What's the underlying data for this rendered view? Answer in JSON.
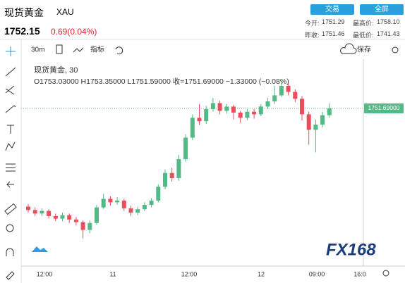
{
  "header": {
    "title": "现货黄金",
    "symbol": "XAU",
    "buttons": [
      "交易",
      "全屏"
    ],
    "price": "1752.15",
    "change": "0.69(0.04%)",
    "stats": [
      [
        "今开:",
        "1751.29"
      ],
      [
        "最高价:",
        "1758.10"
      ],
      [
        "昨收:",
        "1751.46"
      ],
      [
        "最低价:",
        "1741.43"
      ]
    ]
  },
  "toolbar": {
    "interval": "30m",
    "indicators": "指标",
    "save": "保存"
  },
  "legend": {
    "title": "现货黄金, 30",
    "ohlc": "O1753.03000  H1753.35000  L1751.59000  收=1751.69000  −1.33000 (−0.08%)"
  },
  "watermark": "FX168",
  "chart_data": {
    "type": "candlestick",
    "up_color": "#53b987",
    "down_color": "#eb4d5c",
    "ylim": [
      1733.4,
      1757.4
    ],
    "x_labels": [
      "12:00",
      "11",
      "12:00",
      "12",
      "09:00",
      "16:0"
    ],
    "last_price": {
      "value": 1751.69,
      "label": "1751.69000"
    },
    "open": [
      1740.3,
      1739.9,
      1739.5,
      1739.8,
      1739.2,
      1738.9,
      1739.3,
      1738.8,
      1738.5,
      1737.6,
      1738.4,
      1740.2,
      1741.2,
      1740.8,
      1741.0,
      1740.1,
      1739.6,
      1740.0,
      1740.5,
      1741.0,
      1742.6,
      1744.2,
      1743.6,
      1745.8,
      1748.3,
      1750.6,
      1750.2,
      1751.6,
      1752.3,
      1751.4,
      1751.9,
      1751.2,
      1750.6,
      1751.3,
      1751.0,
      1751.9,
      1752.5,
      1753.2,
      1754.3,
      1753.6,
      1752.8,
      1751.0,
      1749.2,
      1749.8,
      1750.9
    ],
    "high": [
      1740.6,
      1740.2,
      1740.1,
      1740.0,
      1739.5,
      1739.6,
      1739.5,
      1739.1,
      1738.7,
      1738.7,
      1740.5,
      1741.8,
      1741.5,
      1741.4,
      1741.2,
      1740.4,
      1740.3,
      1740.8,
      1741.3,
      1742.9,
      1744.6,
      1744.8,
      1746.3,
      1748.7,
      1751.0,
      1752.2,
      1752.0,
      1752.9,
      1752.6,
      1752.2,
      1752.1,
      1751.4,
      1751.6,
      1751.6,
      1752.2,
      1752.9,
      1754.3,
      1754.9,
      1754.6,
      1753.9,
      1753.1,
      1751.3,
      1750.4,
      1751.3,
      1752.3
    ],
    "low": [
      1739.6,
      1739.2,
      1739.2,
      1738.9,
      1738.6,
      1738.6,
      1738.4,
      1738.1,
      1736.6,
      1737.2,
      1738.2,
      1740.0,
      1740.4,
      1740.5,
      1739.8,
      1739.2,
      1739.3,
      1739.8,
      1740.2,
      1740.8,
      1742.3,
      1743.2,
      1743.3,
      1745.5,
      1748.0,
      1749.8,
      1749.9,
      1751.3,
      1751.0,
      1751.1,
      1750.4,
      1750.0,
      1750.3,
      1750.5,
      1750.8,
      1751.6,
      1752.2,
      1753.0,
      1753.2,
      1752.4,
      1750.3,
      1747.5,
      1746.6,
      1749.5,
      1750.6
    ],
    "close": [
      1739.9,
      1739.5,
      1739.8,
      1739.2,
      1738.9,
      1739.3,
      1738.8,
      1738.5,
      1737.6,
      1738.4,
      1740.2,
      1741.2,
      1740.8,
      1741.0,
      1740.1,
      1739.6,
      1740.0,
      1740.5,
      1741.0,
      1742.6,
      1744.2,
      1743.6,
      1745.8,
      1748.3,
      1750.6,
      1750.2,
      1751.6,
      1752.3,
      1751.4,
      1751.9,
      1751.2,
      1750.6,
      1751.3,
      1751.0,
      1751.9,
      1752.5,
      1753.2,
      1754.3,
      1753.6,
      1752.8,
      1751.0,
      1749.2,
      1749.8,
      1750.9,
      1751.69
    ]
  }
}
